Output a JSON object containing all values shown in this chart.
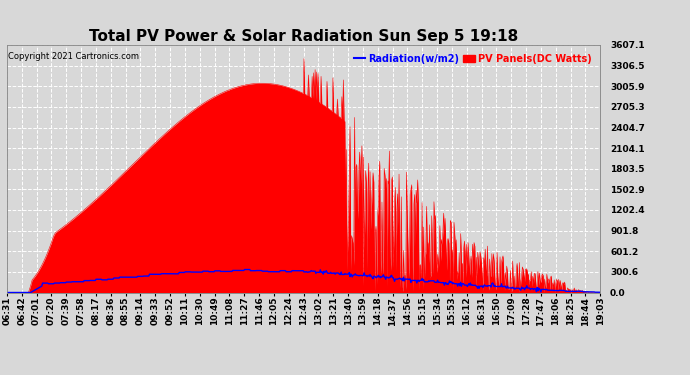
{
  "title": "Total PV Power & Solar Radiation Sun Sep 5 19:18",
  "copyright": "Copyright 2021 Cartronics.com",
  "legend_radiation": "Radiation(w/m2)",
  "legend_pv": "PV Panels(DC Watts)",
  "legend_radiation_color": "blue",
  "legend_pv_color": "red",
  "yticks": [
    0.0,
    300.6,
    601.2,
    901.8,
    1202.4,
    1502.9,
    1803.5,
    2104.1,
    2404.7,
    2705.3,
    3005.9,
    3306.5,
    3607.1
  ],
  "ymax": 3607.1,
  "ymin": 0.0,
  "background_color": "#d8d8d8",
  "plot_background": "#d8d8d8",
  "grid_color": "white",
  "fill_color_pv": "red",
  "line_color_radiation": "blue",
  "title_fontsize": 11,
  "tick_fontsize": 6.5
}
